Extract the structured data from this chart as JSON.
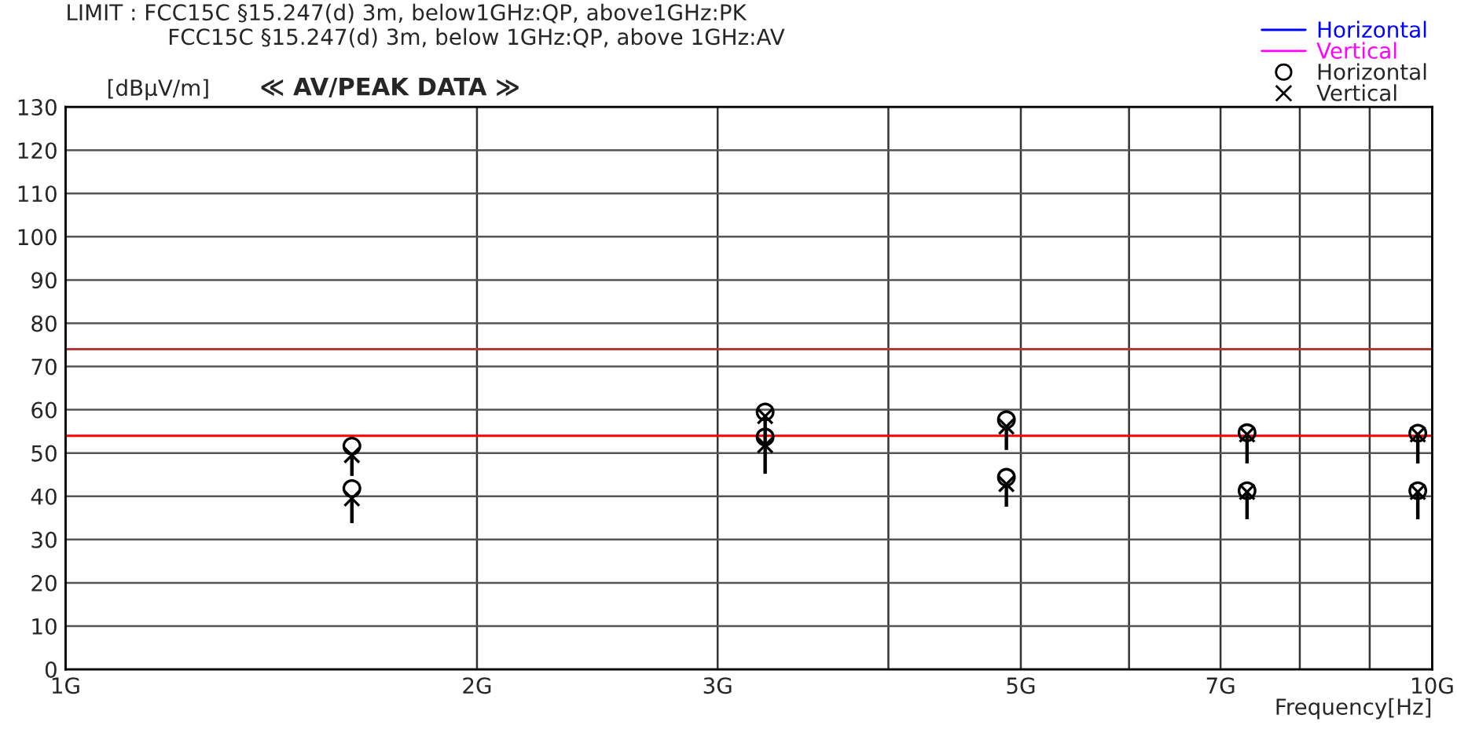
{
  "chart_data": {
    "type": "scatter",
    "title": "LIMIT : FCC15C §15.247(d) 3m, below1GHz:QP, above1GHz:PK",
    "subtitle": "FCC15C §15.247(d) 3m, below 1GHz:QP, above 1GHz:AV",
    "ylabel": "[dBμV/m]",
    "xlabel": "Frequency[Hz]",
    "annotations": [
      "≪ AV/PEAK DATA ≫"
    ],
    "log": "x",
    "xlim": [
      1,
      10
    ],
    "xticks": [
      {
        "value": 1,
        "label": "1G"
      },
      {
        "value": 2,
        "label": "2G"
      },
      {
        "value": 3,
        "label": "3G"
      },
      {
        "value": 4,
        "label": null
      },
      {
        "value": 5,
        "label": "5G"
      },
      {
        "value": 6,
        "label": null
      },
      {
        "value": 7,
        "label": "7G"
      },
      {
        "value": 8,
        "label": null
      },
      {
        "value": 9,
        "label": null
      },
      {
        "value": 10,
        "label": "10G"
      }
    ],
    "ylim": [
      0,
      130
    ],
    "yticks": [
      0,
      10,
      20,
      30,
      40,
      50,
      60,
      70,
      80,
      90,
      100,
      110,
      120,
      130
    ],
    "grid": true,
    "legend": "top right",
    "ref_lines": [
      {
        "axis": "y",
        "value": 74,
        "color": "#b03a3a"
      },
      {
        "axis": "y",
        "value": 54,
        "color": "#ff0000"
      }
    ],
    "series": [
      {
        "name": "Horizontal",
        "type": "line",
        "color": "#0000ff"
      },
      {
        "name": "Vertical",
        "type": "line",
        "color": "#ff00ff"
      },
      {
        "name": "Horizontal",
        "marker": "circle",
        "color": "#000000",
        "x": [
          1.62,
          1.62,
          3.25,
          3.25,
          4.88,
          4.88,
          7.32,
          7.32,
          9.76,
          9.76
        ],
        "values": [
          51.6,
          41.8,
          59.5,
          53.7,
          57.7,
          44.4,
          54.7,
          41.3,
          54.6,
          41.3
        ]
      },
      {
        "name": "Vertical",
        "marker": "cross",
        "color": "#000000",
        "x": [
          1.62,
          1.62,
          3.25,
          3.25,
          4.88,
          4.88,
          7.32,
          7.32,
          9.76,
          9.76
        ],
        "values": [
          49.5,
          39.5,
          58.5,
          51.8,
          56.1,
          42.8,
          54.3,
          41.0,
          54.3,
          41.0
        ],
        "errors": [
          [
            44.7,
            49.5
          ],
          [
            33.8,
            39.5
          ],
          [
            52,
            58.5
          ],
          [
            45.2,
            51.8
          ],
          [
            50.7,
            56.1
          ],
          [
            37.6,
            42.8
          ],
          [
            47.6,
            54.3
          ],
          [
            34.7,
            41.0
          ],
          [
            47.6,
            54.3
          ],
          [
            34.7,
            41.0
          ]
        ]
      }
    ]
  }
}
